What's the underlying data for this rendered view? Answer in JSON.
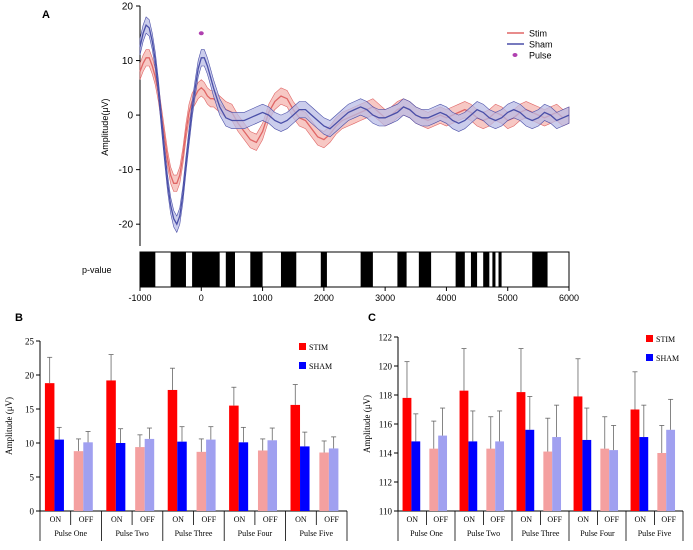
{
  "chart_data": [
    {
      "panel": "A",
      "type": "line",
      "ylabel": "Amplitude(μV)",
      "ylim": [
        -24,
        20
      ],
      "xlim": [
        -1000,
        6000
      ],
      "yticks": [
        20,
        10,
        0,
        -10,
        -20
      ],
      "xticks": [
        -1000,
        0,
        1000,
        2000,
        3000,
        4000,
        5000,
        6000
      ],
      "legend": {
        "items": [
          "Stim",
          "Sham",
          "Pulse"
        ],
        "placement": "top-right"
      },
      "colors": {
        "stim": "#e06666",
        "stim_band": "#f4b6b0",
        "sham": "#4a4fa8",
        "sham_band": "#b9bce6",
        "pulse": "#b040b0"
      },
      "pulse": {
        "x": 0,
        "y": 15
      },
      "series": [
        {
          "name": "Stim",
          "x": [
            -1000,
            -950,
            -900,
            -850,
            -800,
            -750,
            -700,
            -650,
            -600,
            -550,
            -500,
            -450,
            -400,
            -350,
            -300,
            -250,
            -200,
            -150,
            -100,
            -50,
            0,
            50,
            100,
            150,
            200,
            300,
            400,
            500,
            600,
            700,
            800,
            900,
            1000,
            1100,
            1200,
            1300,
            1400,
            1500,
            1600,
            1700,
            1800,
            1900,
            2000,
            2100,
            2200,
            2300,
            2400,
            2500,
            2600,
            2700,
            2800,
            2900,
            3000,
            3100,
            3200,
            3300,
            3400,
            3500,
            3600,
            3700,
            3800,
            3900,
            4000,
            4100,
            4200,
            4300,
            4400,
            4500,
            4600,
            4700,
            4800,
            4900,
            5000,
            5100,
            5200,
            5300,
            5400,
            5500,
            5600,
            5700,
            5800,
            5900,
            6000
          ],
          "values": [
            8,
            9.5,
            10.5,
            10.5,
            9,
            7,
            4,
            0,
            -4,
            -8,
            -11,
            -12.5,
            -12.5,
            -11,
            -7.5,
            -3,
            0.5,
            2.5,
            3.5,
            4.5,
            5,
            4.5,
            3.5,
            3,
            3,
            2,
            1,
            0.5,
            -1.5,
            -3,
            -4.5,
            -5,
            -3,
            0.5,
            2.5,
            3.5,
            3,
            1,
            -0.5,
            -1,
            -2.5,
            -4,
            -4.5,
            -3.5,
            -2,
            -1,
            -0.5,
            0,
            0.5,
            1,
            1.5,
            0.5,
            -0.5,
            0,
            1,
            1.5,
            1,
            0,
            -0.5,
            -1,
            -0.5,
            0,
            -0.5,
            0,
            0.5,
            1,
            0.5,
            -0.5,
            -1,
            -0.5,
            0.5,
            0,
            -1,
            -0.5,
            0.5,
            1,
            0.5,
            0,
            -0.5,
            0,
            0.5,
            -0.5,
            0
          ],
          "band": 1.5
        },
        {
          "name": "Sham",
          "x": [
            -1000,
            -950,
            -900,
            -850,
            -800,
            -750,
            -700,
            -650,
            -600,
            -550,
            -500,
            -450,
            -400,
            -350,
            -300,
            -250,
            -200,
            -150,
            -100,
            -50,
            0,
            50,
            100,
            150,
            200,
            300,
            400,
            500,
            600,
            700,
            800,
            900,
            1000,
            1100,
            1200,
            1300,
            1400,
            1500,
            1600,
            1700,
            1800,
            1900,
            2000,
            2100,
            2200,
            2300,
            2400,
            2500,
            2600,
            2700,
            2800,
            2900,
            3000,
            3100,
            3200,
            3300,
            3400,
            3500,
            3600,
            3700,
            3800,
            3900,
            4000,
            4100,
            4200,
            4300,
            4400,
            4500,
            4600,
            4700,
            4800,
            4900,
            5000,
            5100,
            5200,
            5300,
            5400,
            5500,
            5600,
            5700,
            5800,
            5900,
            6000
          ],
          "values": [
            12.5,
            15,
            16.5,
            16,
            13.5,
            10,
            5,
            -1,
            -7,
            -12.5,
            -16.5,
            -19,
            -20,
            -18.5,
            -14.5,
            -9,
            -4,
            1,
            5,
            8.5,
            10.5,
            10.5,
            9,
            7,
            5,
            1.5,
            -0.5,
            -1,
            -1,
            -1,
            -0.5,
            0,
            0.5,
            0,
            -1,
            -1.5,
            -1,
            0,
            1,
            1,
            0,
            -1,
            -2,
            -2.5,
            -1.5,
            -0.5,
            0.5,
            1,
            1.5,
            1,
            0,
            -0.5,
            -0.5,
            0,
            0.5,
            1.5,
            1,
            0,
            -0.5,
            -0.5,
            0,
            0.5,
            0,
            -1,
            -1.5,
            -1,
            0,
            1,
            0.5,
            -0.5,
            -1,
            -0.5,
            0.5,
            1,
            0.5,
            -0.5,
            -1,
            -0.5,
            0.5,
            0,
            -1,
            -0.5,
            0
          ],
          "band": 1.5
        }
      ],
      "p_value_label": "p-value",
      "significance_bars": [
        [
          -1000,
          -750
        ],
        [
          -500,
          -250
        ],
        [
          -150,
          300
        ],
        [
          400,
          550
        ],
        [
          800,
          1000
        ],
        [
          1300,
          1550
        ],
        [
          1950,
          2050
        ],
        [
          2600,
          2800
        ],
        [
          3200,
          3350
        ],
        [
          3550,
          3750
        ],
        [
          4150,
          4300
        ],
        [
          4400,
          4500
        ],
        [
          4600,
          4700
        ],
        [
          4750,
          4800
        ],
        [
          4850,
          4900
        ],
        [
          5400,
          5650
        ]
      ]
    },
    {
      "panel": "B",
      "type": "bar",
      "ylabel": "Amplitude (μV)",
      "ylim": [
        0,
        25
      ],
      "yticks": [
        0,
        5,
        10,
        15,
        20,
        25
      ],
      "groups": [
        "Pulse One",
        "Pulse Two",
        "Pulse Three",
        "Pulse Four",
        "Pulse Five"
      ],
      "subcategories": [
        "ON",
        "OFF"
      ],
      "legend": {
        "items": [
          "STIM",
          "SHAM"
        ],
        "placement": "top-right"
      },
      "colors": {
        "stim_on": "#ff0000",
        "sham_on": "#0000ff",
        "stim_off": "#f4a0a0",
        "sham_off": "#a0a0f0"
      },
      "series": [
        {
          "name": "STIM ON",
          "values": [
            18.8,
            19.2,
            17.8,
            15.5,
            15.6
          ],
          "err": [
            3.8,
            3.8,
            3.2,
            2.7,
            3.0
          ]
        },
        {
          "name": "SHAM ON",
          "values": [
            10.5,
            10.0,
            10.2,
            10.1,
            9.5
          ],
          "err": [
            1.8,
            2.1,
            2.2,
            2.2,
            2.1
          ]
        },
        {
          "name": "STIM OFF",
          "values": [
            8.8,
            9.4,
            8.7,
            8.9,
            8.6
          ],
          "err": [
            1.8,
            1.8,
            1.9,
            1.7,
            1.7
          ]
        },
        {
          "name": "SHAM OFF",
          "values": [
            10.1,
            10.6,
            10.5,
            10.4,
            9.2
          ],
          "err": [
            1.6,
            1.6,
            1.9,
            1.8,
            1.7
          ]
        }
      ]
    },
    {
      "panel": "C",
      "type": "bar",
      "ylabel": "Amplitude (μV)",
      "ylim": [
        110,
        122
      ],
      "yticks": [
        110,
        112,
        114,
        116,
        118,
        120,
        122
      ],
      "groups": [
        "Pulse One",
        "Pulse Two",
        "Pulse Three",
        "Pulse Four",
        "Pulse Five"
      ],
      "subcategories": [
        "ON",
        "OFF"
      ],
      "legend": {
        "items": [
          "STIM",
          "SHAM"
        ],
        "placement": "top-right"
      },
      "colors": {
        "stim_on": "#ff0000",
        "sham_on": "#0000ff",
        "stim_off": "#f4a0a0",
        "sham_off": "#a0a0f0"
      },
      "series": [
        {
          "name": "STIM ON",
          "values": [
            117.8,
            118.3,
            118.2,
            117.9,
            117.0
          ],
          "err": [
            2.5,
            2.9,
            3.0,
            2.6,
            2.6
          ]
        },
        {
          "name": "SHAM ON",
          "values": [
            114.8,
            114.8,
            115.6,
            114.9,
            115.1
          ],
          "err": [
            1.9,
            2.1,
            2.3,
            2.2,
            2.2
          ]
        },
        {
          "name": "STIM OFF",
          "values": [
            114.3,
            114.3,
            114.1,
            114.3,
            114.0
          ],
          "err": [
            1.9,
            2.2,
            2.3,
            2.2,
            1.9
          ]
        },
        {
          "name": "SHAM OFF",
          "values": [
            115.2,
            114.8,
            115.1,
            114.2,
            115.6
          ],
          "err": [
            1.9,
            2.1,
            2.2,
            1.7,
            2.1
          ]
        }
      ]
    }
  ]
}
